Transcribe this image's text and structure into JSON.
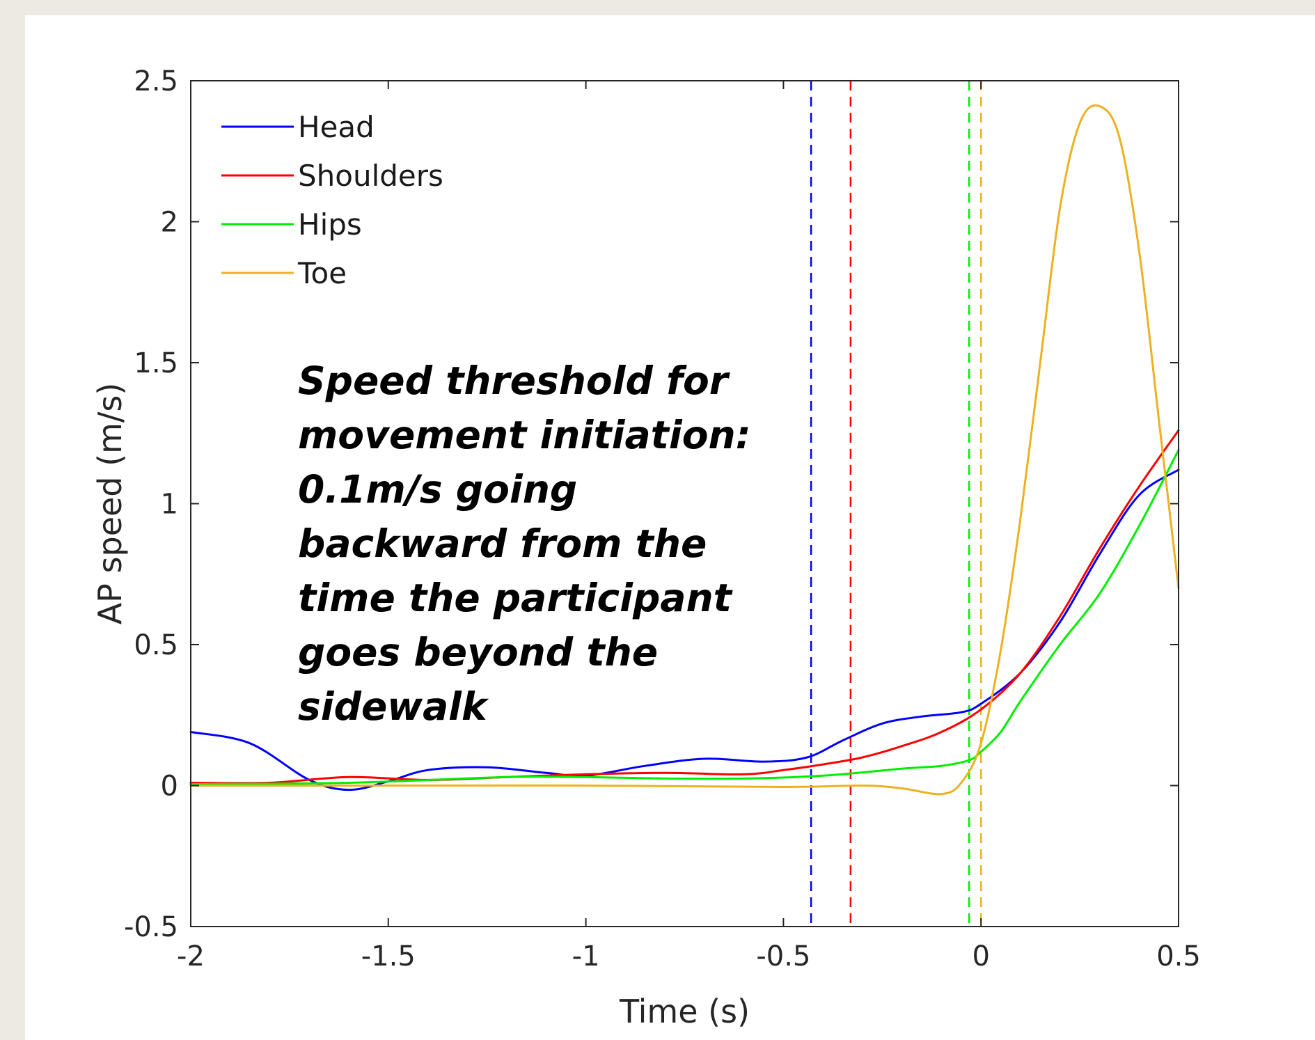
{
  "chart_data": {
    "type": "line",
    "xlabel": "Time (s)",
    "ylabel": "AP speed (m/s)",
    "xlim": [
      -2,
      0.5
    ],
    "ylim": [
      -0.5,
      2.5
    ],
    "xticks": [
      -2,
      -1.5,
      -1,
      -0.5,
      0,
      0.5
    ],
    "yticks": [
      -0.5,
      0,
      0.5,
      1,
      1.5,
      2,
      2.5
    ],
    "xtick_labels": [
      "-2",
      "-1.5",
      "-1",
      "-0.5",
      "0",
      "0.5"
    ],
    "ytick_labels": [
      "-0.5",
      "0",
      "0.5",
      "1",
      "1.5",
      "2",
      "2.5"
    ],
    "legend_position": "top-left",
    "grid": false,
    "series": [
      {
        "name": "Head",
        "color": "#0000ff",
        "x": [
          -2.0,
          -1.85,
          -1.7,
          -1.6,
          -1.5,
          -1.4,
          -1.25,
          -1.1,
          -1.0,
          -0.85,
          -0.7,
          -0.55,
          -0.44,
          -0.35,
          -0.25,
          -0.15,
          -0.05,
          0.0,
          0.1,
          0.2,
          0.3,
          0.4,
          0.5
        ],
        "y": [
          0.19,
          0.15,
          0.02,
          -0.015,
          0.015,
          0.055,
          0.065,
          0.045,
          0.035,
          0.07,
          0.095,
          0.085,
          0.1,
          0.16,
          0.22,
          0.245,
          0.26,
          0.29,
          0.4,
          0.58,
          0.82,
          1.03,
          1.12
        ]
      },
      {
        "name": "Shoulders",
        "color": "#ff0000",
        "x": [
          -2.0,
          -1.8,
          -1.6,
          -1.4,
          -1.2,
          -1.0,
          -0.8,
          -0.6,
          -0.5,
          -0.4,
          -0.3,
          -0.2,
          -0.1,
          0.0,
          0.1,
          0.2,
          0.3,
          0.4,
          0.5
        ],
        "y": [
          0.01,
          0.01,
          0.03,
          0.02,
          0.03,
          0.04,
          0.045,
          0.04,
          0.055,
          0.075,
          0.1,
          0.14,
          0.19,
          0.27,
          0.4,
          0.6,
          0.84,
          1.06,
          1.26
        ]
      },
      {
        "name": "Hips",
        "color": "#00ee00",
        "x": [
          -2.0,
          -1.6,
          -1.2,
          -1.0,
          -0.8,
          -0.6,
          -0.4,
          -0.2,
          -0.1,
          -0.03,
          0.0,
          0.05,
          0.1,
          0.2,
          0.3,
          0.4,
          0.5
        ],
        "y": [
          0.005,
          0.01,
          0.03,
          0.03,
          0.025,
          0.025,
          0.035,
          0.06,
          0.07,
          0.09,
          0.12,
          0.19,
          0.3,
          0.5,
          0.68,
          0.92,
          1.19
        ]
      },
      {
        "name": "Toe",
        "color": "#edb120",
        "x": [
          -2.0,
          -1.5,
          -1.0,
          -0.5,
          -0.3,
          -0.2,
          -0.1,
          -0.05,
          0.0,
          0.05,
          0.1,
          0.15,
          0.2,
          0.25,
          0.3,
          0.35,
          0.4,
          0.45,
          0.5
        ],
        "y": [
          0.0,
          0.0,
          0.0,
          -0.005,
          0.0,
          -0.01,
          -0.03,
          0.01,
          0.15,
          0.48,
          0.95,
          1.5,
          2.05,
          2.35,
          2.41,
          2.3,
          1.9,
          1.3,
          0.7
        ]
      }
    ],
    "vertical_lines": [
      {
        "x": -0.43,
        "color": "#0000ff",
        "style": "dashed"
      },
      {
        "x": -0.33,
        "color": "#ff0000",
        "style": "dashed"
      },
      {
        "x": -0.03,
        "color": "#00ee00",
        "style": "dashed"
      },
      {
        "x": 0.0,
        "color": "#edb120",
        "style": "dashed"
      }
    ],
    "annotation_lines": [
      "Speed threshold for",
      "movement  initiation:",
      "0.1m/s going",
      "backward from the",
      "time the participant",
      "goes beyond the",
      "sidewalk"
    ]
  }
}
